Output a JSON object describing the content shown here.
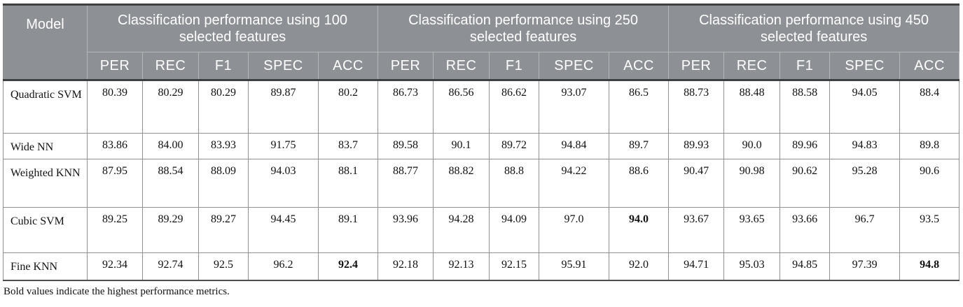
{
  "table": {
    "model_header": "Model",
    "sections": [
      {
        "title": "Classification performance using 100 selected features"
      },
      {
        "title": "Classification performance using 250 selected features"
      },
      {
        "title": "Classification performance using 450 selected features"
      }
    ],
    "metric_headers": [
      "PER",
      "REC",
      "F1",
      "SPEC",
      "ACC"
    ],
    "rows": [
      {
        "model": "Quadratic SVM",
        "model_bold": false,
        "values": [
          "80.39",
          "80.29",
          "80.29",
          "89.87",
          "80.2",
          "86.73",
          "86.56",
          "86.62",
          "93.07",
          "86.5",
          "88.73",
          "88.48",
          "88.58",
          "94.05",
          "88.4"
        ],
        "bold_indices": []
      },
      {
        "model": "Wide NN",
        "model_bold": false,
        "values": [
          "83.86",
          "84.00",
          "83.93",
          "91.75",
          "83.7",
          "89.58",
          "90.1",
          "89.72",
          "94.84",
          "89.7",
          "89.93",
          "90.0",
          "89.96",
          "94.83",
          "89.8"
        ],
        "bold_indices": []
      },
      {
        "model": "Weighted KNN",
        "model_bold": false,
        "values": [
          "87.95",
          "88.54",
          "88.09",
          "94.03",
          "88.1",
          "88.77",
          "88.82",
          "88.8",
          "94.22",
          "88.6",
          "90.47",
          "90.98",
          "90.62",
          "95.28",
          "90.6"
        ],
        "bold_indices": []
      },
      {
        "model": "Cubic SVM",
        "model_bold": false,
        "values": [
          "89.25",
          "89.29",
          "89.27",
          "94.45",
          "89.1",
          "93.96",
          "94.28",
          "94.09",
          "97.0",
          "94.0",
          "93.67",
          "93.65",
          "93.66",
          "96.7",
          "93.5"
        ],
        "bold_indices": [
          9
        ]
      },
      {
        "model": "Fine KNN",
        "model_bold": true,
        "values": [
          "92.34",
          "92.74",
          "92.5",
          "96.2",
          "92.4",
          "92.18",
          "92.13",
          "92.15",
          "95.91",
          "92.0",
          "94.71",
          "95.03",
          "94.85",
          "97.39",
          "94.8"
        ],
        "bold_indices": [
          4,
          14
        ]
      }
    ],
    "footnote": "Bold values indicate the highest performance metrics."
  },
  "colors": {
    "header_bg": "#8d9196",
    "header_text": "#ffffff",
    "body_text": "#111111",
    "grid_line": "#8f9092",
    "dark_rule": "#3d3f41"
  }
}
